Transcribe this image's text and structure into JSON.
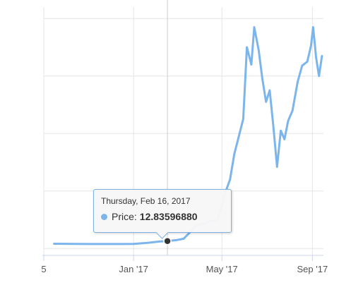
{
  "chart_data": {
    "type": "line",
    "series": [
      {
        "color": "#7cb5ec",
        "points": [
          [
            "2016-09-15",
            8.2
          ],
          [
            "2016-10-15",
            8.0
          ],
          [
            "2016-11-15",
            7.8
          ],
          [
            "2016-12-15",
            7.7
          ],
          [
            "2017-01-01",
            7.9
          ],
          [
            "2017-01-20",
            9.8
          ],
          [
            "2017-02-05",
            12.0
          ],
          [
            "2017-02-16",
            12.84
          ],
          [
            "2017-02-28",
            14.5
          ],
          [
            "2017-03-10",
            17
          ],
          [
            "2017-03-20",
            30
          ],
          [
            "2017-03-28",
            40
          ],
          [
            "2017-04-05",
            43
          ],
          [
            "2017-04-15",
            47
          ],
          [
            "2017-04-25",
            50
          ],
          [
            "2017-04-30",
            70
          ],
          [
            "2017-05-05",
            95
          ],
          [
            "2017-05-12",
            120
          ],
          [
            "2017-05-18",
            165
          ],
          [
            "2017-05-25",
            200
          ],
          [
            "2017-05-30",
            225
          ],
          [
            "2017-06-04",
            350
          ],
          [
            "2017-06-10",
            320
          ],
          [
            "2017-06-14",
            385
          ],
          [
            "2017-06-20",
            345
          ],
          [
            "2017-06-25",
            295
          ],
          [
            "2017-06-30",
            255
          ],
          [
            "2017-07-05",
            275
          ],
          [
            "2017-07-10",
            212
          ],
          [
            "2017-07-15",
            142
          ],
          [
            "2017-07-20",
            205
          ],
          [
            "2017-07-25",
            190
          ],
          [
            "2017-07-30",
            222
          ],
          [
            "2017-08-05",
            240
          ],
          [
            "2017-08-12",
            290
          ],
          [
            "2017-08-18",
            318
          ],
          [
            "2017-08-25",
            325
          ],
          [
            "2017-08-30",
            352
          ],
          [
            "2017-09-02",
            385
          ],
          [
            "2017-09-06",
            332
          ],
          [
            "2017-09-10",
            300
          ],
          [
            "2017-09-14",
            335
          ]
        ]
      }
    ],
    "x_ticks": [
      {
        "date": "2016-09-01",
        "label": "5"
      },
      {
        "date": "2017-01-01",
        "label": "Jan '17"
      },
      {
        "date": "2017-05-01",
        "label": "May '17"
      },
      {
        "date": "2017-09-01",
        "label": "Sep '17"
      }
    ],
    "x_range": [
      "2016-09-01",
      "2017-09-16"
    ],
    "y_range": [
      -12,
      420
    ],
    "y_gridlines": [
      0,
      100,
      200,
      300,
      400
    ],
    "grid": true,
    "crosshair_date": "2017-02-16",
    "hover_point": {
      "date": "2017-02-16",
      "value": 12.84
    },
    "tooltip": {
      "date_text": "Thursday, Feb 16, 2017",
      "series_label": "Price:",
      "value_text": "12.83596880"
    }
  }
}
